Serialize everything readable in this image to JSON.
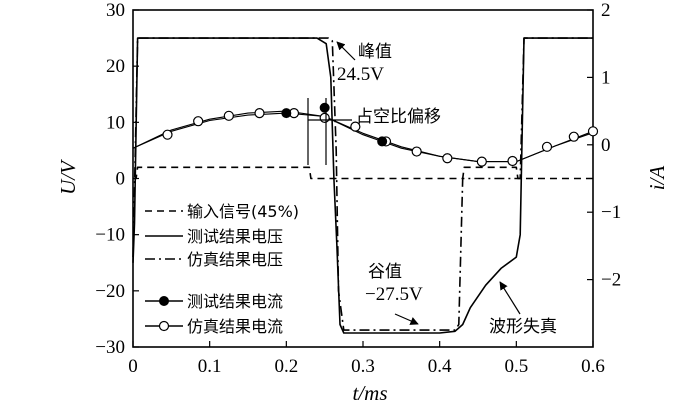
{
  "chart_data": {
    "type": "line",
    "xlabel": "t/ms",
    "ylabel_left": "U/V",
    "ylabel_right": "i/A",
    "xlim": [
      0,
      0.6
    ],
    "ylim_left": [
      -30,
      30
    ],
    "ylim_right": [
      -3,
      2
    ],
    "x_ticks": [
      "0",
      "0.1",
      "0.2",
      "0.3",
      "0.4",
      "0.5",
      "0.6"
    ],
    "y_left_ticks": [
      "30",
      "20",
      "10",
      "0",
      "−10",
      "−20",
      "−30"
    ],
    "y_right_ticks": [
      "2",
      "1",
      "0",
      "−1",
      "−2"
    ],
    "grid": false,
    "legend_placement": "bottom-left",
    "series": [
      {
        "name": "输入信号(45%)",
        "axis": "left",
        "style": "dashed",
        "x": [
          0,
          0.004,
          0.006,
          0.23,
          0.232,
          0.43,
          0.432,
          0.5,
          0.502,
          0.6
        ],
        "y": [
          0,
          0,
          2,
          2,
          0,
          0,
          2,
          2,
          0,
          0
        ]
      },
      {
        "name": "测试结果电压",
        "axis": "left",
        "style": "solid",
        "x": [
          0,
          0.002,
          0.006,
          0.01,
          0.24,
          0.252,
          0.258,
          0.262,
          0.266,
          0.27,
          0.275,
          0.28,
          0.3,
          0.35,
          0.4,
          0.42,
          0.43,
          0.44,
          0.46,
          0.48,
          0.5,
          0.505,
          0.51,
          0.52,
          0.6
        ],
        "y": [
          -15,
          -8,
          25,
          25,
          25,
          24,
          18,
          0,
          -12,
          -26,
          -27.5,
          -27.5,
          -27.5,
          -27.5,
          -27.5,
          -27.2,
          -26,
          -23,
          -19,
          -16,
          -14,
          -10,
          25,
          25,
          25
        ]
      },
      {
        "name": "仿真结果电压",
        "axis": "left",
        "style": "dashdot",
        "x": [
          0,
          0.003,
          0.006,
          0.255,
          0.26,
          0.265,
          0.268,
          0.275,
          0.42,
          0.425,
          0.43,
          0.505,
          0.51,
          0.52,
          0.6
        ],
        "y": [
          -14,
          5,
          25,
          25,
          24.5,
          5,
          -20,
          -27,
          -27,
          -26,
          0,
          0,
          25,
          25,
          25
        ]
      },
      {
        "name": "测试结果电流",
        "axis": "right",
        "style": "solid-filled-markers",
        "x": [
          0,
          0.05,
          0.1,
          0.15,
          0.2,
          0.25,
          0.3,
          0.35,
          0.4,
          0.45,
          0.5,
          0.55,
          0.6
        ],
        "y": [
          -0.05,
          0.22,
          0.38,
          0.47,
          0.5,
          0.42,
          0.15,
          -0.05,
          -0.17,
          -0.25,
          -0.25,
          -0.02,
          0.18
        ]
      },
      {
        "name": "仿真结果电流",
        "axis": "right",
        "style": "solid-open-markers",
        "x": [
          0,
          0.05,
          0.1,
          0.15,
          0.2,
          0.25,
          0.3,
          0.35,
          0.4,
          0.45,
          0.5,
          0.55,
          0.6
        ],
        "y": [
          -0.05,
          0.2,
          0.36,
          0.44,
          0.47,
          0.42,
          0.17,
          -0.03,
          -0.17,
          -0.25,
          -0.25,
          -0.02,
          0.2
        ]
      }
    ],
    "markers_filled": [
      {
        "x": 0.2,
        "y": 0.47
      },
      {
        "x": 0.25,
        "y": 0.55
      },
      {
        "x": 0.325,
        "y": 0.05
      }
    ],
    "markers_open": [
      {
        "x": 0.045,
        "y": 0.15
      },
      {
        "x": 0.085,
        "y": 0.35
      },
      {
        "x": 0.125,
        "y": 0.43
      },
      {
        "x": 0.165,
        "y": 0.47
      },
      {
        "x": 0.21,
        "y": 0.47
      },
      {
        "x": 0.25,
        "y": 0.4
      },
      {
        "x": 0.29,
        "y": 0.27
      },
      {
        "x": 0.33,
        "y": 0.05
      },
      {
        "x": 0.37,
        "y": -0.1
      },
      {
        "x": 0.41,
        "y": -0.2
      },
      {
        "x": 0.455,
        "y": -0.25
      },
      {
        "x": 0.495,
        "y": -0.24
      },
      {
        "x": 0.54,
        "y": -0.03
      },
      {
        "x": 0.575,
        "y": 0.12
      },
      {
        "x": 0.6,
        "y": 0.2
      }
    ],
    "annotations": {
      "peak_label": "峰值",
      "peak_value": "24.5V",
      "duty_shift": "占空比偏移",
      "valley_label": "谷值",
      "valley_value": "−27.5V",
      "distortion": "波形失真"
    }
  }
}
